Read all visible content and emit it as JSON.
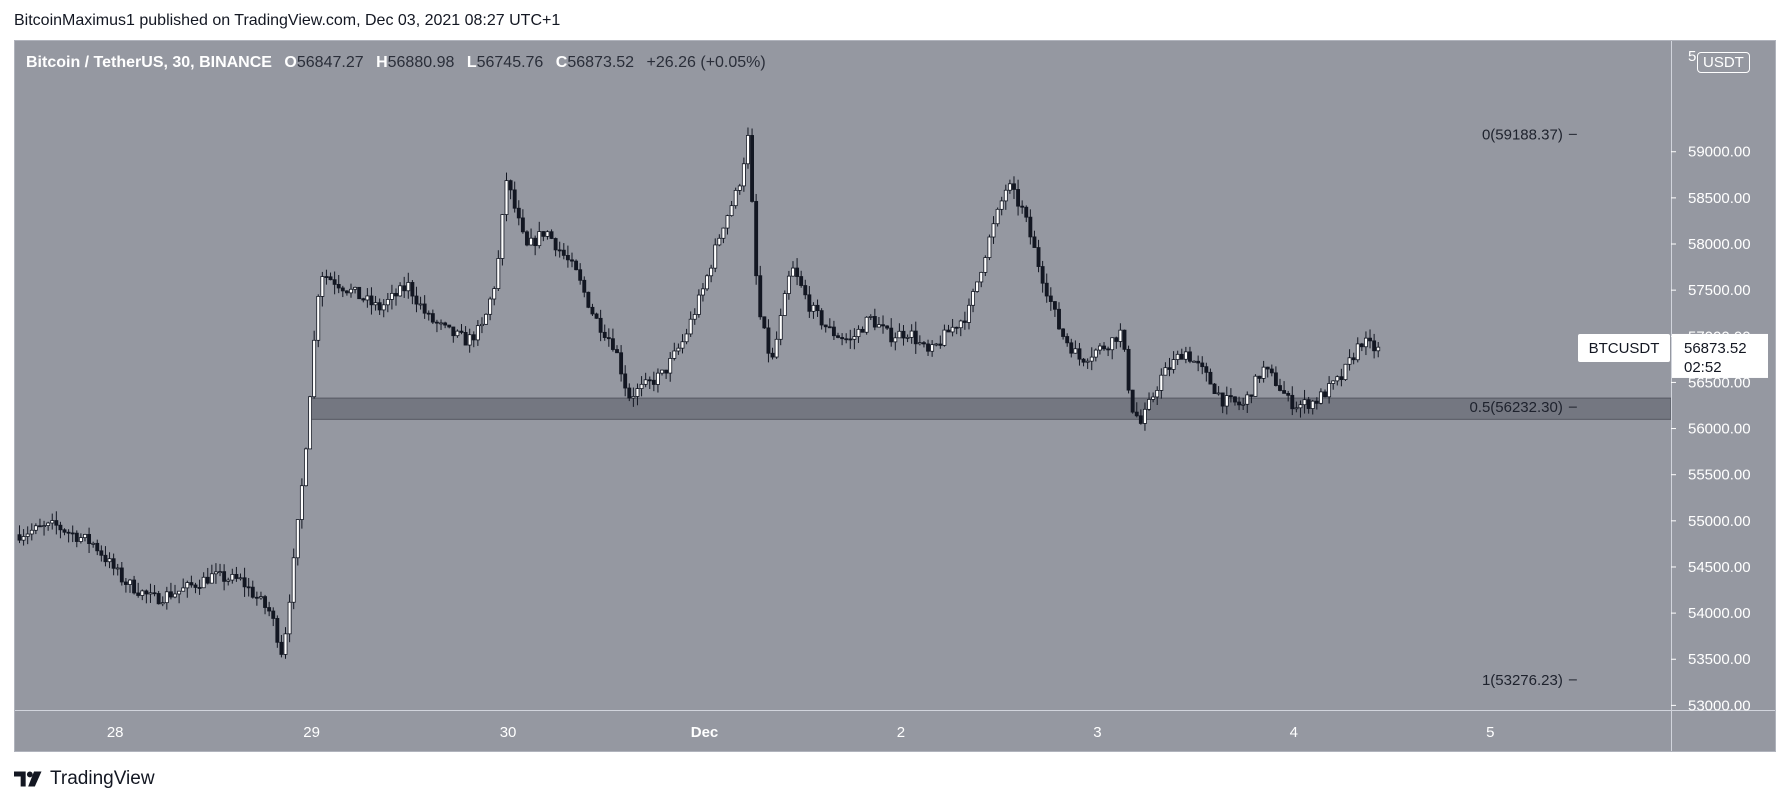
{
  "header": {
    "publish_line": "BitcoinMaximus1 published on TradingView.com, Dec 03, 2021 08:27 UTC+1"
  },
  "legend": {
    "symbol": "Bitcoin / TetherUS, 30, BINANCE",
    "o_label": "O",
    "o_value": "56847.27",
    "h_label": "H",
    "h_value": "56880.98",
    "l_label": "L",
    "l_value": "56745.76",
    "c_label": "C",
    "c_value": "56873.52",
    "change": "+26.26 (+0.05%)"
  },
  "currency": "USDT",
  "watermark": {
    "text": "TradingView",
    "icon": "tradingview-logo-icon"
  },
  "chart_data": {
    "type": "candlestick",
    "symbol": "BTCUSDT",
    "interval": "30",
    "exchange": "BINANCE",
    "ylim": [
      52950,
      60200
    ],
    "y_ticks": [
      53000,
      53500,
      54000,
      54500,
      55000,
      55500,
      56000,
      56500,
      57000,
      57500,
      58000,
      58500,
      59000
    ],
    "y_tick_labels": [
      "53000.00",
      "53500.00",
      "54000.00",
      "54500.00",
      "55000.00",
      "55500.00",
      "56000.00",
      "56500.00",
      "57000.00",
      "57500.00",
      "58000.00",
      "58500.00",
      "59000.00"
    ],
    "top_partial_label": "5",
    "x_ticks": [
      {
        "day": 28,
        "label": "28"
      },
      {
        "day": 29,
        "label": "29"
      },
      {
        "day": 30,
        "label": "30"
      },
      {
        "day": 31,
        "label": "Dec"
      },
      {
        "day": 32,
        "label": "2"
      },
      {
        "day": 33,
        "label": "3"
      },
      {
        "day": 34,
        "label": "4"
      },
      {
        "day": 35,
        "label": "5"
      }
    ],
    "x_range_days": [
      27.49,
      35.92
    ],
    "current_price": {
      "symbol": "BTCUSDT",
      "price": "56873.52",
      "value": 56873.52,
      "countdown": "02:52"
    },
    "fib_levels": [
      {
        "ratio": "0",
        "value": 59188.37,
        "label": "0(59188.37)"
      },
      {
        "ratio": "0.5",
        "value": 56232.3,
        "label": "0.5(56232.30)"
      },
      {
        "ratio": "1",
        "value": 53276.23,
        "label": "1(53276.23)"
      }
    ],
    "support_zone": {
      "from_day": 28.99,
      "to_day": 35.92,
      "low": 56100,
      "high": 56330
    },
    "price_path": [
      [
        27.5,
        54850
      ],
      [
        27.7,
        54950
      ],
      [
        27.9,
        54750
      ],
      [
        28.05,
        54350
      ],
      [
        28.2,
        54150
      ],
      [
        28.35,
        54250
      ],
      [
        28.5,
        54400
      ],
      [
        28.65,
        54350
      ],
      [
        28.8,
        54000
      ],
      [
        28.86,
        53550
      ],
      [
        28.92,
        54600
      ],
      [
        28.97,
        55600
      ],
      [
        29.0,
        56400
      ],
      [
        29.05,
        57700
      ],
      [
        29.2,
        57500
      ],
      [
        29.35,
        57300
      ],
      [
        29.5,
        57550
      ],
      [
        29.6,
        57200
      ],
      [
        29.7,
        57050
      ],
      [
        29.8,
        56950
      ],
      [
        29.88,
        57100
      ],
      [
        29.95,
        57650
      ],
      [
        30.0,
        58700
      ],
      [
        30.1,
        57950
      ],
      [
        30.2,
        58150
      ],
      [
        30.35,
        57700
      ],
      [
        30.45,
        57200
      ],
      [
        30.55,
        56900
      ],
      [
        30.62,
        56350
      ],
      [
        30.7,
        56450
      ],
      [
        30.8,
        56600
      ],
      [
        30.9,
        56950
      ],
      [
        31.0,
        57500
      ],
      [
        31.1,
        58200
      ],
      [
        31.18,
        58600
      ],
      [
        31.23,
        59150
      ],
      [
        31.28,
        57300
      ],
      [
        31.35,
        56700
      ],
      [
        31.45,
        57750
      ],
      [
        31.55,
        57300
      ],
      [
        31.65,
        57050
      ],
      [
        31.75,
        56950
      ],
      [
        31.85,
        57200
      ],
      [
        31.95,
        57000
      ],
      [
        32.05,
        57050
      ],
      [
        32.15,
        56800
      ],
      [
        32.25,
        57050
      ],
      [
        32.35,
        57250
      ],
      [
        32.45,
        58000
      ],
      [
        32.55,
        58650
      ],
      [
        32.63,
        58350
      ],
      [
        32.72,
        57700
      ],
      [
        32.82,
        57050
      ],
      [
        32.92,
        56750
      ],
      [
        33.05,
        56900
      ],
      [
        33.13,
        57050
      ],
      [
        33.18,
        56250
      ],
      [
        33.23,
        56050
      ],
      [
        33.33,
        56550
      ],
      [
        33.45,
        56850
      ],
      [
        33.55,
        56600
      ],
      [
        33.65,
        56300
      ],
      [
        33.75,
        56250
      ],
      [
        33.85,
        56650
      ],
      [
        33.92,
        56500
      ],
      [
        33.98,
        56300
      ],
      [
        34.03,
        56250
      ],
      [
        34.12,
        56300
      ],
      [
        34.25,
        56550
      ],
      [
        34.35,
        56950
      ],
      [
        34.43,
        56850
      ]
    ]
  }
}
